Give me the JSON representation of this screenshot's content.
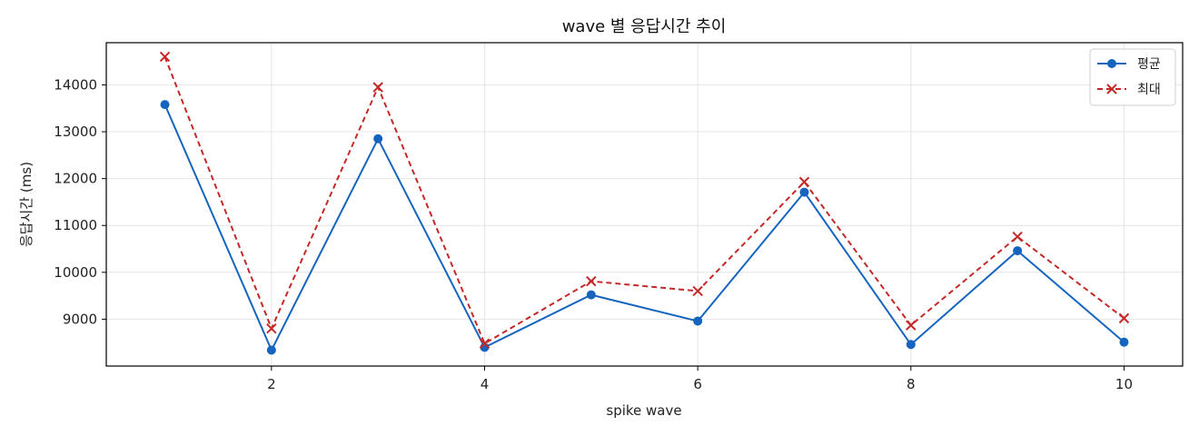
{
  "chart_data": {
    "type": "line",
    "title": "wave 별 응답시간 추이",
    "xlabel": "spike wave",
    "ylabel": "응답시간 (ms)",
    "x": [
      1,
      2,
      3,
      4,
      5,
      6,
      7,
      8,
      9,
      10
    ],
    "xticks": [
      2,
      4,
      6,
      8,
      10
    ],
    "yticks": [
      9000,
      10000,
      11000,
      12000,
      13000,
      14000
    ],
    "xlim": [
      0.45,
      10.55
    ],
    "ylim": [
      8000,
      14900
    ],
    "grid": true,
    "legend_position": "top-right",
    "series": [
      {
        "name": "평균",
        "color": "#1565c0",
        "style": "solid",
        "marker": "circle",
        "values": [
          13580,
          8340,
          12850,
          8400,
          9520,
          8960,
          11710,
          8460,
          10460,
          8510
        ]
      },
      {
        "name": "최대",
        "color": "#c62828",
        "style": "dashed",
        "marker": "x",
        "values": [
          14600,
          8800,
          13950,
          8480,
          9810,
          9600,
          11930,
          8870,
          10760,
          9020
        ]
      }
    ]
  }
}
